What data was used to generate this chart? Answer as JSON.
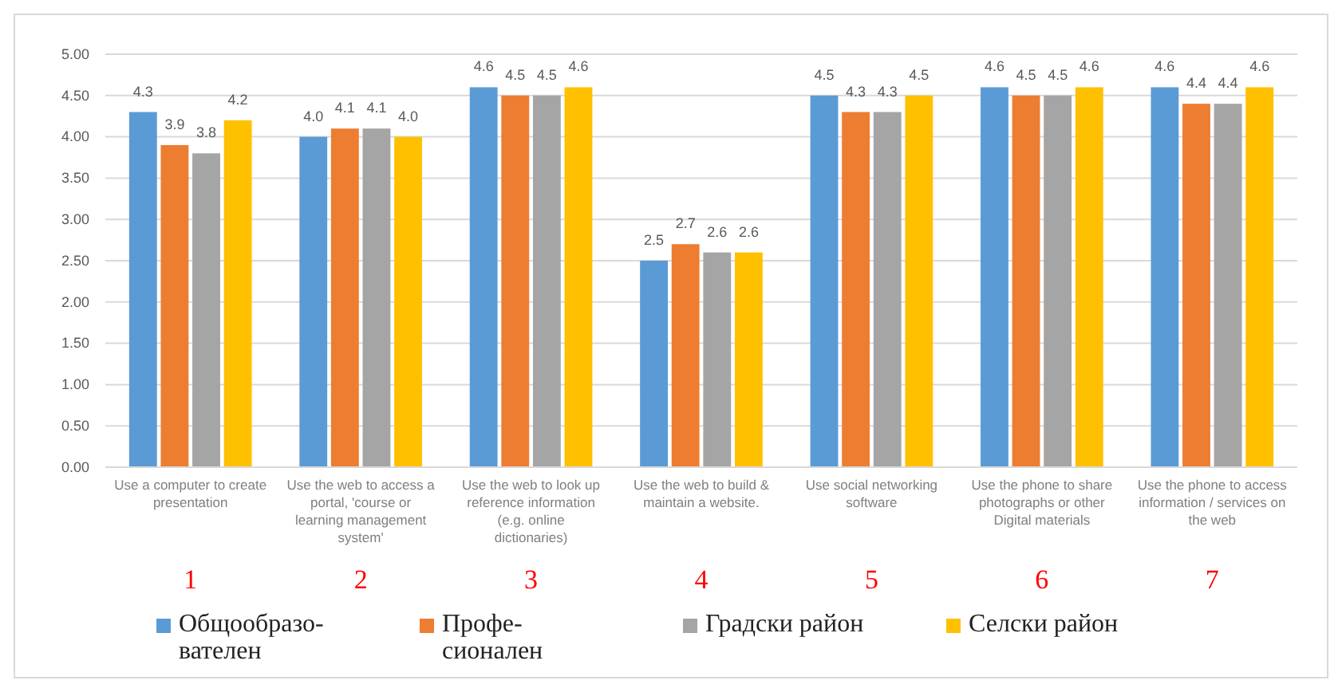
{
  "chart_data": {
    "type": "bar",
    "categories": [
      "Use a computer to create presentation",
      "Use the web to access a portal, 'course or learning management system'",
      "Use the web to look up reference information (e.g. online dictionaries)",
      "Use the web to build & maintain a website.",
      "Use social networking software",
      "Use the phone to share photographs or other Digital materials",
      "Use the phone to access information / services on the web"
    ],
    "series": [
      {
        "name": "Общообразо-вателен",
        "color": "#5b9bd5",
        "values": [
          4.3,
          4.0,
          4.6,
          2.5,
          4.5,
          4.6,
          4.6
        ],
        "value_labels": [
          "4.3",
          "4.0",
          "4.6",
          "2.5",
          "4.5",
          "4.6",
          "4.6"
        ]
      },
      {
        "name": "Профе-сионален",
        "color": "#ed7d31",
        "values": [
          3.9,
          4.1,
          4.5,
          2.7,
          4.3,
          4.5,
          4.4
        ],
        "value_labels": [
          "3.9",
          "4.1",
          "4.5",
          "2.7",
          "4.3",
          "4.5",
          "4.4"
        ]
      },
      {
        "name": "Градски район",
        "color": "#a5a5a5",
        "values": [
          3.8,
          4.1,
          4.5,
          2.6,
          4.3,
          4.5,
          4.4
        ],
        "value_labels": [
          "3.8",
          "4.1",
          "4.5",
          "2.6",
          "4.3",
          "4.5",
          "4.4"
        ]
      },
      {
        "name": "Селски район",
        "color": "#ffc000",
        "values": [
          4.2,
          4.0,
          4.6,
          2.6,
          4.5,
          4.6,
          4.6
        ],
        "value_labels": [
          "4.2",
          "4.0",
          "4.6",
          "2.6",
          "4.5",
          "4.6",
          "4.6"
        ]
      }
    ],
    "ylim": [
      0,
      5
    ],
    "yticks": [
      {
        "value": 0,
        "label": "0.00"
      },
      {
        "value": 0.5,
        "label": "0.50"
      },
      {
        "value": 1,
        "label": "1.00"
      },
      {
        "value": 1.5,
        "label": "1.50"
      },
      {
        "value": 2,
        "label": "2.00"
      },
      {
        "value": 2.5,
        "label": "2.50"
      },
      {
        "value": 3,
        "label": "3.00"
      },
      {
        "value": 3.5,
        "label": "3.50"
      },
      {
        "value": 4,
        "label": "4.00"
      },
      {
        "value": 4.5,
        "label": "4.50"
      },
      {
        "value": 5,
        "label": "5.00"
      }
    ],
    "grid": "y",
    "legend": "bottom",
    "annotations": [
      "1",
      "2",
      "3",
      "4",
      "5",
      "6",
      "7"
    ]
  }
}
